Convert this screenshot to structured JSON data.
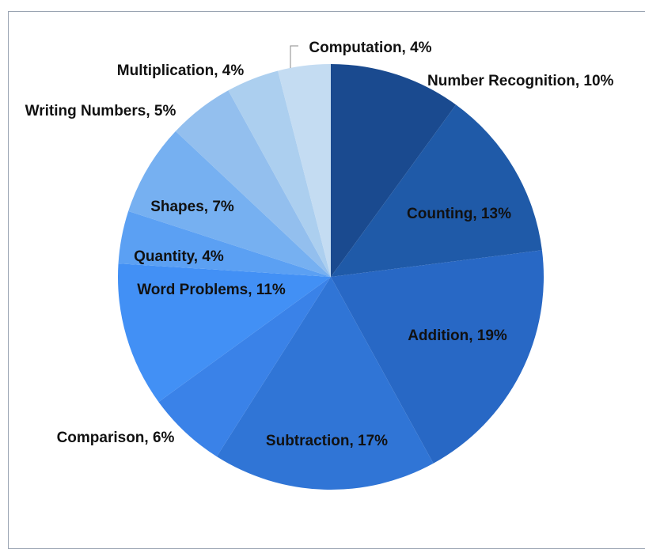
{
  "chart_data": {
    "type": "pie",
    "title": "",
    "start_angle_deg": 0,
    "direction": "clockwise",
    "slices": [
      {
        "label": "Number Recognition",
        "value": 10,
        "text": "Number Recognition, 10%",
        "color": "#1a4a8f"
      },
      {
        "label": "Counting",
        "value": 13,
        "text": "Counting, 13%",
        "color": "#1f5aa8"
      },
      {
        "label": "Addition",
        "value": 19,
        "text": "Addition, 19%",
        "color": "#2868c5"
      },
      {
        "label": "Subtraction",
        "value": 17,
        "text": "Subtraction, 17%",
        "color": "#3075d6"
      },
      {
        "label": "Comparison",
        "value": 6,
        "text": "Comparison, 6%",
        "color": "#3a82e8"
      },
      {
        "label": "Word Problems",
        "value": 11,
        "text": "Word Problems, 11%",
        "color": "#4290f5"
      },
      {
        "label": "Quantity",
        "value": 4,
        "text": "Quantity, 4%",
        "color": "#5ba0f3"
      },
      {
        "label": "Shapes",
        "value": 7,
        "text": "Shapes, 7%",
        "color": "#76b0f1"
      },
      {
        "label": "Writing Numbers",
        "value": 5,
        "text": "Writing Numbers, 5%",
        "color": "#93bfee"
      },
      {
        "label": "Multiplication",
        "value": 4,
        "text": "Multiplication, 4%",
        "color": "#accfef"
      },
      {
        "label": "Computation",
        "value": 4,
        "text": "Computation, 4%",
        "color": "#c4dcf2"
      }
    ]
  }
}
